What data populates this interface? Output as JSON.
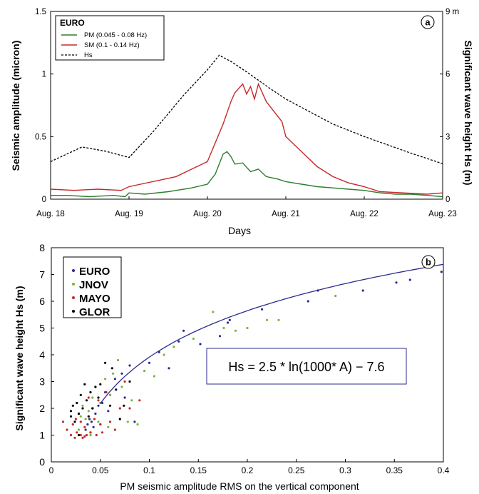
{
  "chart_data": [
    {
      "panel": "a",
      "type": "line",
      "xlabel": "Days",
      "ylabel_left": "Seismic amplitude (micron)",
      "ylabel_right": "Significant wave height Hs (m)",
      "x_ticks": [
        "Aug. 18",
        "Aug. 19",
        "Aug. 20",
        "Aug. 21",
        "Aug. 22",
        "Aug. 23"
      ],
      "xlim": [
        18,
        23
      ],
      "ylim_left": [
        0,
        1.5
      ],
      "y_ticks_left": [
        "0",
        "0.5",
        "1",
        "1.5"
      ],
      "ylim_right": [
        0,
        9
      ],
      "y_ticks_right": [
        "0",
        "3",
        "6",
        "9 m"
      ],
      "grid": false,
      "legend": {
        "title": "EURO",
        "position": "top-left",
        "entries": [
          "PM (0.045 - 0.08 Hz)",
          "SM (0.1 - 0.14 Hz)",
          "Hs"
        ]
      },
      "series": [
        {
          "name": "PM (0.045 - 0.08 Hz)",
          "axis": "left",
          "color": "#2e7d2e",
          "style": "solid",
          "x": [
            18.0,
            18.2,
            18.5,
            18.8,
            18.95,
            19.0,
            19.2,
            19.5,
            19.8,
            20.0,
            20.1,
            20.15,
            20.2,
            20.25,
            20.3,
            20.35,
            20.45,
            20.55,
            20.65,
            20.75,
            20.9,
            21.0,
            21.2,
            21.4,
            21.6,
            21.8,
            22.0,
            22.2,
            22.4,
            22.6,
            22.8,
            23.0
          ],
          "y": [
            0.03,
            0.03,
            0.02,
            0.03,
            0.02,
            0.05,
            0.04,
            0.06,
            0.09,
            0.12,
            0.2,
            0.28,
            0.36,
            0.38,
            0.34,
            0.28,
            0.29,
            0.22,
            0.24,
            0.18,
            0.16,
            0.14,
            0.12,
            0.1,
            0.09,
            0.08,
            0.07,
            0.05,
            0.04,
            0.04,
            0.03,
            0.02
          ]
        },
        {
          "name": "SM (0.1 - 0.14 Hz)",
          "axis": "left",
          "color": "#c62828",
          "style": "solid",
          "x": [
            18.0,
            18.3,
            18.6,
            18.9,
            19.0,
            19.3,
            19.6,
            19.8,
            20.0,
            20.1,
            20.2,
            20.3,
            20.35,
            20.45,
            20.5,
            20.55,
            20.6,
            20.65,
            20.75,
            20.85,
            20.95,
            21.0,
            21.1,
            21.2,
            21.4,
            21.6,
            21.8,
            22.0,
            22.2,
            22.5,
            22.8,
            23.0
          ],
          "y": [
            0.08,
            0.07,
            0.08,
            0.07,
            0.1,
            0.14,
            0.18,
            0.24,
            0.3,
            0.45,
            0.6,
            0.78,
            0.85,
            0.92,
            0.84,
            0.9,
            0.8,
            0.92,
            0.78,
            0.7,
            0.62,
            0.5,
            0.44,
            0.38,
            0.26,
            0.18,
            0.13,
            0.1,
            0.06,
            0.05,
            0.04,
            0.05
          ]
        },
        {
          "name": "Hs",
          "axis": "right",
          "color": "#000000",
          "style": "dashed",
          "x": [
            18.0,
            18.4,
            18.7,
            19.0,
            19.3,
            19.7,
            20.0,
            20.15,
            20.3,
            20.5,
            20.8,
            21.0,
            21.3,
            21.6,
            22.0,
            22.3,
            22.6,
            23.0
          ],
          "y": [
            1.8,
            2.5,
            2.3,
            2.0,
            3.2,
            5.0,
            6.2,
            6.9,
            6.6,
            6.1,
            5.3,
            4.8,
            4.2,
            3.6,
            3.0,
            2.6,
            2.2,
            1.7
          ]
        }
      ]
    },
    {
      "panel": "b",
      "type": "scatter",
      "xlabel": "PM seismic amplitude RMS on the vertical component",
      "ylabel": "Significant wave height Hs (m)",
      "xlim": [
        0,
        0.4
      ],
      "ylim": [
        0,
        8
      ],
      "x_ticks": [
        "0",
        "0.05",
        "0.1",
        "0.15",
        "0.2",
        "0.25",
        "0.3",
        "0.35",
        "0.4"
      ],
      "y_ticks": [
        "0",
        "1",
        "2",
        "3",
        "4",
        "5",
        "6",
        "7",
        "8"
      ],
      "grid": false,
      "legend": {
        "position": "top-left",
        "entries": [
          "EURO",
          "JNOV",
          "MAYO",
          "GLOR"
        ]
      },
      "annotation": "Hs = 2.5 * ln(1000* A) − 7.6",
      "fit_curve": {
        "label": "Hs = 2.5 * ln(1000* A) − 7.6",
        "color": "#2b2b8f",
        "x_range": [
          0.05,
          0.4
        ],
        "a": 2.5,
        "b": 1000,
        "c": -7.6
      },
      "series": [
        {
          "name": "EURO",
          "color": "#2b2b8f",
          "points": [
            [
              0.035,
              1.2
            ],
            [
              0.037,
              1.4
            ],
            [
              0.039,
              1.6
            ],
            [
              0.041,
              1.5
            ],
            [
              0.04,
              1.1
            ],
            [
              0.043,
              1.3
            ],
            [
              0.045,
              1.8
            ],
            [
              0.048,
              2.1
            ],
            [
              0.05,
              1.4
            ],
            [
              0.052,
              2.2
            ],
            [
              0.055,
              2.6
            ],
            [
              0.06,
              2.5
            ],
            [
              0.065,
              3.1
            ],
            [
              0.072,
              3.3
            ],
            [
              0.08,
              3.6
            ],
            [
              0.1,
              3.7
            ],
            [
              0.11,
              4.1
            ],
            [
              0.12,
              3.5
            ],
            [
              0.13,
              4.5
            ],
            [
              0.135,
              4.9
            ],
            [
              0.152,
              4.4
            ],
            [
              0.172,
              4.7
            ],
            [
              0.18,
              5.2
            ],
            [
              0.182,
              5.3
            ],
            [
              0.215,
              5.7
            ],
            [
              0.262,
              6.0
            ],
            [
              0.272,
              6.4
            ],
            [
              0.318,
              6.4
            ],
            [
              0.352,
              6.7
            ],
            [
              0.366,
              6.8
            ],
            [
              0.398,
              7.1
            ],
            [
              0.075,
              2.4
            ],
            [
              0.085,
              1.5
            ],
            [
              0.042,
              2.0
            ],
            [
              0.058,
              1.9
            ]
          ]
        },
        {
          "name": "JNOV",
          "color": "#7cb342",
          "points": [
            [
              0.028,
              1.2
            ],
            [
              0.03,
              1.7
            ],
            [
              0.032,
              2.1
            ],
            [
              0.035,
              1.6
            ],
            [
              0.038,
              1.9
            ],
            [
              0.04,
              1.0
            ],
            [
              0.042,
              2.4
            ],
            [
              0.045,
              2.8
            ],
            [
              0.048,
              1.5
            ],
            [
              0.05,
              2.2
            ],
            [
              0.055,
              3.1
            ],
            [
              0.058,
              1.3
            ],
            [
              0.06,
              2.5
            ],
            [
              0.063,
              3.3
            ],
            [
              0.068,
              3.8
            ],
            [
              0.072,
              2.8
            ],
            [
              0.078,
              1.5
            ],
            [
              0.082,
              2.3
            ],
            [
              0.088,
              1.4
            ],
            [
              0.095,
              3.4
            ],
            [
              0.105,
              3.2
            ],
            [
              0.115,
              4.0
            ],
            [
              0.125,
              4.3
            ],
            [
              0.145,
              4.6
            ],
            [
              0.165,
              5.6
            ],
            [
              0.176,
              5.0
            ],
            [
              0.188,
              4.9
            ],
            [
              0.2,
              5.0
            ],
            [
              0.22,
              5.3
            ],
            [
              0.232,
              5.3
            ],
            [
              0.29,
              6.2
            ]
          ]
        },
        {
          "name": "MAYO",
          "color": "#c62828",
          "points": [
            [
              0.012,
              1.5
            ],
            [
              0.016,
              1.2
            ],
            [
              0.02,
              1.0
            ],
            [
              0.022,
              1.4
            ],
            [
              0.024,
              0.9
            ],
            [
              0.026,
              1.1
            ],
            [
              0.028,
              1.8
            ],
            [
              0.03,
              1.0
            ],
            [
              0.032,
              0.9
            ],
            [
              0.034,
              1.3
            ],
            [
              0.036,
              1.0
            ],
            [
              0.038,
              2.4
            ],
            [
              0.04,
              1.1
            ],
            [
              0.044,
              1.6
            ],
            [
              0.046,
              1.0
            ],
            [
              0.05,
              1.4
            ],
            [
              0.056,
              2.6
            ],
            [
              0.06,
              1.5
            ],
            [
              0.065,
              1.2
            ],
            [
              0.07,
              2.0
            ],
            [
              0.075,
              3.0
            ],
            [
              0.08,
              2.0
            ],
            [
              0.09,
              2.3
            ],
            [
              0.03,
              1.5
            ],
            [
              0.034,
              0.95
            ],
            [
              0.048,
              2.3
            ],
            [
              0.052,
              1.1
            ],
            [
              0.025,
              1.6
            ]
          ]
        },
        {
          "name": "GLOR",
          "color": "#000000",
          "points": [
            [
              0.02,
              1.9
            ],
            [
              0.022,
              2.1
            ],
            [
              0.024,
              1.5
            ],
            [
              0.026,
              2.2
            ],
            [
              0.028,
              1.8
            ],
            [
              0.03,
              2.5
            ],
            [
              0.032,
              2.0
            ],
            [
              0.034,
              2.9
            ],
            [
              0.036,
              2.3
            ],
            [
              0.038,
              1.7
            ],
            [
              0.04,
              2.6
            ],
            [
              0.042,
              2.0
            ],
            [
              0.045,
              2.8
            ],
            [
              0.048,
              2.4
            ],
            [
              0.05,
              2.9
            ],
            [
              0.055,
              3.7
            ],
            [
              0.06,
              2.1
            ],
            [
              0.062,
              3.5
            ],
            [
              0.066,
              2.7
            ],
            [
              0.07,
              1.6
            ],
            [
              0.074,
              2.1
            ],
            [
              0.08,
              3.0
            ],
            [
              0.028,
              1.0
            ],
            [
              0.02,
              1.7
            ]
          ]
        }
      ]
    }
  ],
  "panel_labels": [
    "a",
    "b"
  ],
  "colors": {
    "axis": "#000000",
    "fit": "#2b2b8f",
    "annotation_box": "#2b2b8f"
  }
}
